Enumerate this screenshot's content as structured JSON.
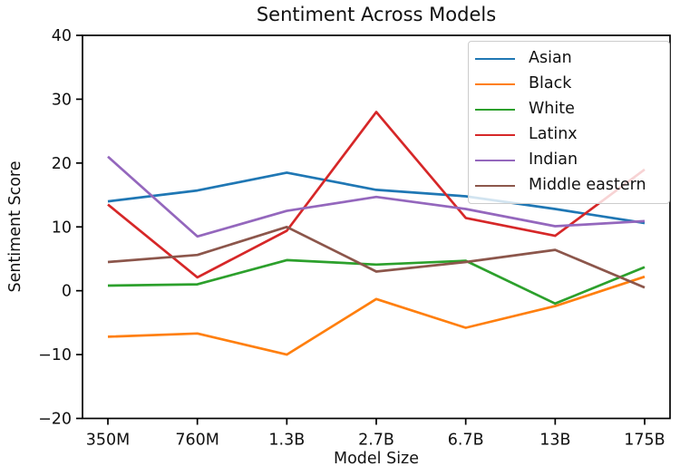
{
  "title": "Sentiment Across Models",
  "chart_data": {
    "type": "line",
    "title": "Sentiment Across Models",
    "xlabel": "Model Size",
    "ylabel": "Sentiment Score",
    "categories": [
      "350M",
      "760M",
      "1.3B",
      "2.7B",
      "6.7B",
      "13B",
      "175B"
    ],
    "ylim": [
      -20,
      40
    ],
    "yticks": [
      -20,
      -10,
      0,
      10,
      20,
      30,
      40
    ],
    "ytick_labels": [
      "−20",
      "−10",
      "0",
      "10",
      "20",
      "30",
      "40"
    ],
    "grid": false,
    "legend_position": "upper right",
    "axis_color": "#000000",
    "series": [
      {
        "name": "Asian",
        "color": "#1f77b4",
        "values": [
          14,
          15.7,
          18.5,
          15.8,
          14.8,
          12.8,
          10.6
        ]
      },
      {
        "name": "Black",
        "color": "#ff7f0e",
        "values": [
          -7.2,
          -6.7,
          -10,
          -1.3,
          -5.8,
          -2.4,
          2.2
        ]
      },
      {
        "name": "White",
        "color": "#2ca02c",
        "values": [
          0.8,
          1.0,
          4.8,
          4.1,
          4.7,
          -2.0,
          3.7
        ]
      },
      {
        "name": "Latinx",
        "color": "#d62728",
        "values": [
          13.5,
          2.1,
          9.4,
          28,
          11.4,
          8.6,
          19
        ]
      },
      {
        "name": "Indian",
        "color": "#9467bd",
        "values": [
          21,
          8.5,
          12.5,
          14.7,
          12.8,
          10.1,
          10.9
        ]
      },
      {
        "name": "Middle eastern",
        "color": "#8c564b",
        "values": [
          4.5,
          5.6,
          10,
          3.0,
          4.5,
          6.4,
          0.5
        ]
      }
    ]
  }
}
